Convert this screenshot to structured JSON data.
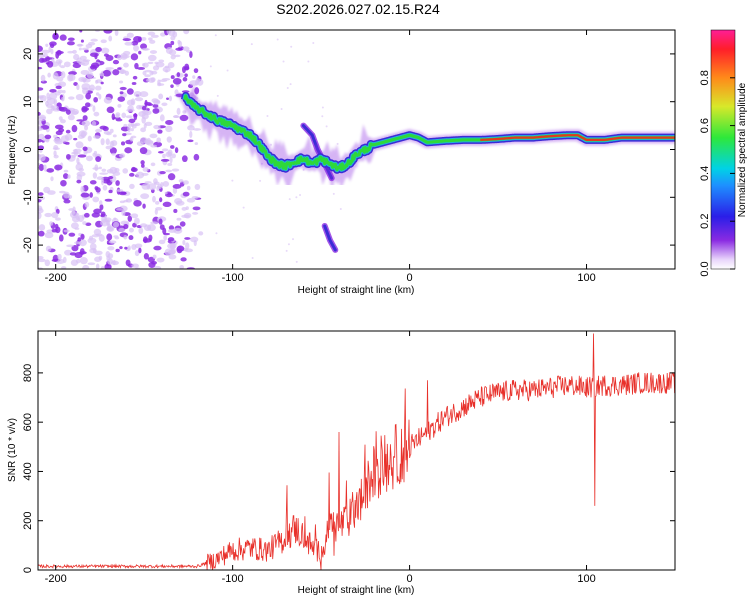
{
  "title": "S202.2026.027.02.15.R24",
  "colors": {
    "snr_line": "#e8302a",
    "cloud": "#8b2be2",
    "cloud_light": "#d9c2f5",
    "ridge_outer": "#3b2bd6",
    "ridge_mid": "#1fb6d8",
    "ridge_inner": "#2ed83a",
    "ridge_core": "#e03a1e"
  },
  "chart_data": [
    {
      "id": "spectrogram",
      "type": "heatmap",
      "xlabel": "Height of straight line (km)",
      "ylabel": "Frequency (Hz)",
      "xlim": [
        -210,
        150
      ],
      "ylim": [
        -25,
        25
      ],
      "xticks": [
        -200,
        -100,
        0,
        100
      ],
      "yticks": [
        -20,
        -10,
        0,
        10,
        20
      ],
      "colorbar": {
        "label": "Normalized spectral amplitude",
        "range": [
          0,
          1
        ],
        "ticks": [
          "0.0",
          "0.2",
          "0.4",
          "0.6",
          "0.8"
        ]
      },
      "noise_region": {
        "x_range": [
          -210,
          -118
        ],
        "y_range": [
          -25,
          25
        ]
      },
      "ridge_x": [
        -127,
        -122,
        -115,
        -108,
        -100,
        -95,
        -90,
        -85,
        -80,
        -75,
        -70,
        -65,
        -60,
        -55,
        -50,
        -45,
        -40,
        -35,
        -30,
        -25,
        -20,
        -15,
        -10,
        -5,
        0,
        5,
        10,
        20,
        30,
        40,
        50,
        60,
        70,
        80,
        90,
        95,
        100,
        110,
        120,
        130,
        140,
        150
      ],
      "ridge_frequency": [
        11,
        9,
        7.5,
        6,
        5,
        4,
        3,
        1,
        -1.5,
        -3,
        -3.5,
        -2.5,
        -2,
        -3,
        -2,
        -3,
        -4,
        -3,
        -1,
        0,
        1,
        1.5,
        2,
        2.5,
        3,
        2.5,
        1.5,
        1.8,
        2,
        2,
        2.2,
        2.5,
        2.5,
        2.8,
        3,
        3,
        2,
        2,
        2.5,
        2.5,
        2.5,
        2.5
      ],
      "ridge_amplitude": [
        0.25,
        0.3,
        0.35,
        0.4,
        0.45,
        0.5,
        0.45,
        0.4,
        0.35,
        0.3,
        0.3,
        0.3,
        0.3,
        0.3,
        0.3,
        0.35,
        0.3,
        0.3,
        0.3,
        0.4,
        0.45,
        0.5,
        0.55,
        0.6,
        0.65,
        0.6,
        0.6,
        0.7,
        0.75,
        0.8,
        0.85,
        0.9,
        0.9,
        0.95,
        0.95,
        0.9,
        0.8,
        0.85,
        0.95,
        0.95,
        0.95,
        0.95
      ],
      "branches": [
        {
          "x": [
            -60,
            -55,
            -52,
            -48,
            -44
          ],
          "frequency": [
            5,
            3,
            0,
            -3,
            -6
          ]
        },
        {
          "x": [
            -48,
            -45,
            -42
          ],
          "frequency": [
            -16,
            -19,
            -21
          ]
        }
      ]
    },
    {
      "id": "snr",
      "type": "line",
      "xlabel": "Height of straight line (km)",
      "ylabel": "SNR (10 * v/v)",
      "xlim": [
        -210,
        150
      ],
      "ylim": [
        0,
        970
      ],
      "xticks": [
        -200,
        -100,
        0,
        100
      ],
      "yticks": [
        0,
        200,
        400,
        600,
        800
      ],
      "series": [
        {
          "name": "SNR",
          "x": [
            -210,
            -120,
            -110,
            -100,
            -90,
            -80,
            -70,
            -65,
            -60,
            -55,
            -50,
            -45,
            -40,
            -35,
            -30,
            -25,
            -20,
            -10,
            0,
            10,
            20,
            30,
            40,
            50,
            60,
            70,
            80,
            90,
            100,
            110,
            120,
            130,
            140,
            150
          ],
          "y": [
            15,
            15,
            40,
            80,
            90,
            80,
            130,
            170,
            140,
            90,
            70,
            180,
            180,
            200,
            250,
            320,
            400,
            450,
            500,
            560,
            620,
            660,
            700,
            720,
            730,
            730,
            740,
            750,
            740,
            750,
            750,
            760,
            760,
            760
          ],
          "spikes": [
            {
              "x": 10,
              "y": 770
            },
            {
              "x": -40,
              "y": 560
            },
            {
              "x": 104,
              "y": 960
            },
            {
              "x": 104.5,
              "y": 260
            }
          ]
        }
      ]
    }
  ]
}
